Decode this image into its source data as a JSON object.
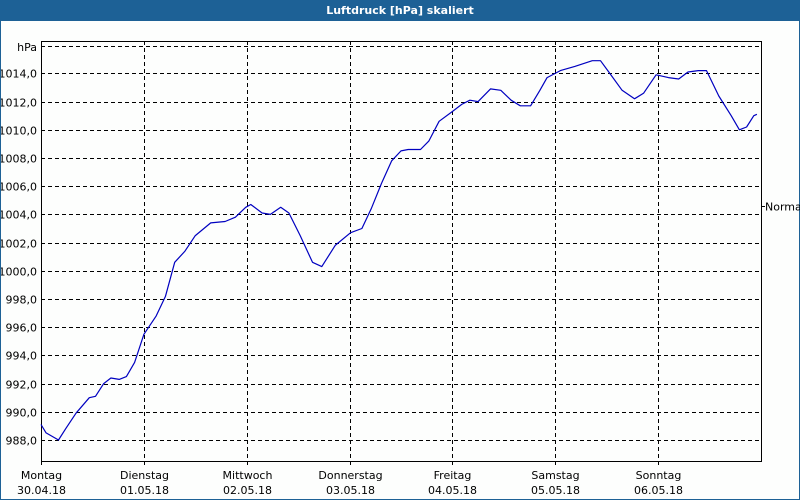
{
  "window": {
    "title": "Luftdruck [hPa] skaliert"
  },
  "chart_data": {
    "type": "line",
    "title": "Luftdruck [hPa] skaliert",
    "xlabel": "",
    "ylabel": "hPa",
    "ylim": [
      986.5,
      1016.0
    ],
    "grid": true,
    "legend_position": "none",
    "right_marker": {
      "label": "Normal",
      "value": 1004.6
    },
    "y_ticks": [
      "1014,0",
      "1012,0",
      "1010,0",
      "1008,0",
      "1006,0",
      "1004,0",
      "1002,0",
      "1000,0",
      "998,0",
      "996,0",
      "994,0",
      "992,0",
      "990,0",
      "988,0"
    ],
    "y_tick_values": [
      1014,
      1012,
      1010,
      1008,
      1006,
      1004,
      1002,
      1000,
      998,
      996,
      994,
      992,
      990,
      988
    ],
    "x_ticks": [
      {
        "day": "Montag",
        "date": "30.04.18"
      },
      {
        "day": "Dienstag",
        "date": "01.05.18"
      },
      {
        "day": "Mittwoch",
        "date": "02.05.18"
      },
      {
        "day": "Donnerstag",
        "date": "03.05.18"
      },
      {
        "day": "Freitag",
        "date": "04.05.18"
      },
      {
        "day": "Samstag",
        "date": "05.05.18"
      },
      {
        "day": "Sonntag",
        "date": "06.05.18"
      }
    ],
    "series": [
      {
        "name": "Luftdruck",
        "color": "#0000c0",
        "x_days": [
          0.0,
          0.05,
          0.17,
          0.24,
          0.34,
          0.47,
          0.53,
          0.61,
          0.68,
          0.76,
          0.83,
          0.91,
          1.0,
          1.12,
          1.21,
          1.3,
          1.4,
          1.5,
          1.65,
          1.79,
          1.89,
          1.99,
          2.04,
          2.15,
          2.23,
          2.33,
          2.41,
          2.52,
          2.64,
          2.73,
          2.86,
          3.01,
          3.12,
          3.21,
          3.31,
          3.41,
          3.5,
          3.57,
          3.69,
          3.77,
          3.87,
          4.0,
          4.09,
          4.17,
          4.25,
          4.37,
          4.47,
          4.57,
          4.66,
          4.76,
          4.85,
          4.92,
          5.05,
          5.19,
          5.36,
          5.44,
          5.53,
          5.65,
          5.77,
          5.86,
          5.98,
          6.1,
          6.2,
          6.29,
          6.39,
          6.47,
          6.59,
          6.71,
          6.79,
          6.86,
          6.93,
          6.96
        ],
        "values": [
          989.1,
          988.5,
          988.0,
          988.8,
          989.9,
          991.0,
          991.1,
          992.0,
          992.4,
          992.3,
          992.5,
          993.5,
          995.5,
          996.8,
          998.2,
          1000.6,
          1001.4,
          1002.5,
          1003.4,
          1003.5,
          1003.8,
          1004.5,
          1004.7,
          1004.1,
          1004.0,
          1004.5,
          1004.1,
          1002.5,
          1000.6,
          1000.3,
          1001.8,
          1002.7,
          1003.0,
          1004.4,
          1006.2,
          1007.8,
          1008.5,
          1008.6,
          1008.6,
          1009.2,
          1010.6,
          1011.3,
          1011.8,
          1012.1,
          1012.0,
          1012.9,
          1012.8,
          1012.1,
          1011.7,
          1011.7,
          1012.8,
          1013.7,
          1014.2,
          1014.5,
          1014.9,
          1014.9,
          1014.0,
          1012.8,
          1012.2,
          1012.6,
          1013.9,
          1013.7,
          1013.6,
          1014.1,
          1014.2,
          1014.2,
          1012.4,
          1011.0,
          1010.0,
          1010.2,
          1011.0,
          1011.1
        ]
      }
    ]
  }
}
